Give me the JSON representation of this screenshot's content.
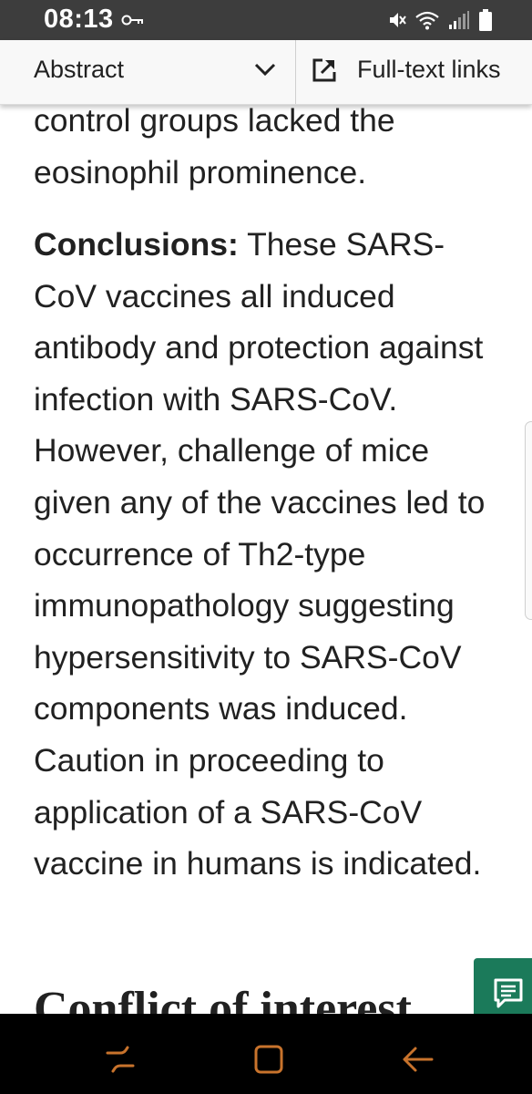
{
  "status_bar": {
    "time": "08:13",
    "icons": [
      "key-icon",
      "mute-icon",
      "wifi-icon",
      "signal-icon",
      "battery-icon"
    ]
  },
  "header": {
    "section_select": "Abstract",
    "full_text_link": "Full-text links"
  },
  "article": {
    "continued_paragraph": "control groups lacked the eosinophil prominence.",
    "conclusions_label": "Conclusions:",
    "conclusions_text": " These SARS-CoV vaccines all induced antibody and protection against infection with SARS-CoV. However, challenge of mice given any of the vaccines led to occurrence of Th2-type immunopathology suggesting hypersensitivity to SARS-CoV components was induced. Caution in proceeding to application of a SARS-CoV vaccine in humans is indicated.",
    "next_section_heading": "Conflict of interest"
  },
  "feedback_button": {
    "icon": "feedback-icon"
  },
  "nav_bar": {
    "icons": [
      "recent-apps-icon",
      "home-icon",
      "back-icon"
    ]
  },
  "colors": {
    "status_bar": "#3d3d3d",
    "header": "#f8f8f8",
    "text": "#212121",
    "feedback_button": "#1b7a5a",
    "nav_bar": "#000000",
    "nav_icons": "#c8732c"
  }
}
